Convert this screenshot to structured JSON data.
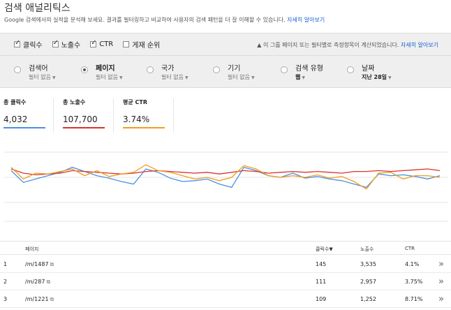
{
  "header": {
    "title": "검색 애널리틱스",
    "subtitle": "Google 검색에서의 실적을 분석해 보세요. 결과를 필터링하고 비교하여 사용자의 검색 패턴을 더 잘 이해할 수 있습니다.",
    "learn_more": "자세히 알아보기"
  },
  "metrics_checks": [
    {
      "label": "클릭수",
      "checked": true
    },
    {
      "label": "노출수",
      "checked": true
    },
    {
      "label": "CTR",
      "checked": true
    },
    {
      "label": "게재 순위",
      "checked": false
    }
  ],
  "notice": {
    "icon": "warning-icon",
    "text": "이 그룹 페이지 또는 필터별로 측정항목이 계산되었습니다.",
    "link": "자세히 알아보기"
  },
  "dimensions": [
    {
      "label": "검색어",
      "sub": "필터 없음",
      "selected": false
    },
    {
      "label": "페이지",
      "sub": "필터 없음",
      "selected": true
    },
    {
      "label": "국가",
      "sub": "필터 없음",
      "selected": false
    },
    {
      "label": "기기",
      "sub": "필터 없음",
      "selected": false
    },
    {
      "label": "검색 유형",
      "sub": "웹",
      "selected": false
    },
    {
      "label": "날짜",
      "sub": "지난 28일",
      "selected": false
    }
  ],
  "stats": [
    {
      "label": "총 클릭수",
      "value": "4,032",
      "color": "#4a90e2"
    },
    {
      "label": "총 노출수",
      "value": "107,700",
      "color": "#d9342b"
    },
    {
      "label": "평균 CTR",
      "value": "3.74%",
      "color": "#f29c1f"
    }
  ],
  "chart_data": {
    "type": "line",
    "series": [
      {
        "color": "#4a90e2",
        "values": [
          58,
          44,
          48,
          52,
          56,
          62,
          57,
          52,
          49,
          45,
          42,
          60,
          56,
          49,
          45,
          46,
          48,
          42,
          38,
          62,
          58,
          52,
          50,
          55,
          49,
          51,
          48,
          46,
          42,
          38,
          54,
          52,
          53,
          51,
          48,
          52
        ]
      },
      {
        "color": "#d9342b",
        "values": [
          60,
          55,
          53,
          54,
          55,
          58,
          57,
          56,
          55,
          54,
          55,
          57,
          58,
          57,
          56,
          55,
          56,
          54,
          56,
          58,
          57,
          55,
          56,
          57,
          56,
          57,
          56,
          55,
          57,
          57,
          58,
          57,
          58,
          59,
          60,
          58
        ]
      },
      {
        "color": "#f29c1f",
        "values": [
          62,
          48,
          55,
          54,
          57,
          60,
          52,
          58,
          51,
          54,
          56,
          65,
          58,
          56,
          52,
          48,
          50,
          46,
          50,
          64,
          60,
          52,
          50,
          52,
          50,
          53,
          49,
          51,
          45,
          36,
          55,
          56,
          48,
          52,
          52,
          50
        ]
      }
    ]
  },
  "table": {
    "headers": {
      "page": "페이지",
      "clicks": "클릭수▼",
      "impressions": "노출수",
      "ctr": "CTR"
    },
    "rows": [
      {
        "index": "1",
        "page": "/m/1487",
        "clicks": "145",
        "impressions": "3,535",
        "ctr": "4.1%"
      },
      {
        "index": "2",
        "page": "/m/287",
        "clicks": "111",
        "impressions": "2,957",
        "ctr": "3.75%"
      },
      {
        "index": "3",
        "page": "/m/1221",
        "clicks": "109",
        "impressions": "1,252",
        "ctr": "8.71%"
      }
    ]
  }
}
